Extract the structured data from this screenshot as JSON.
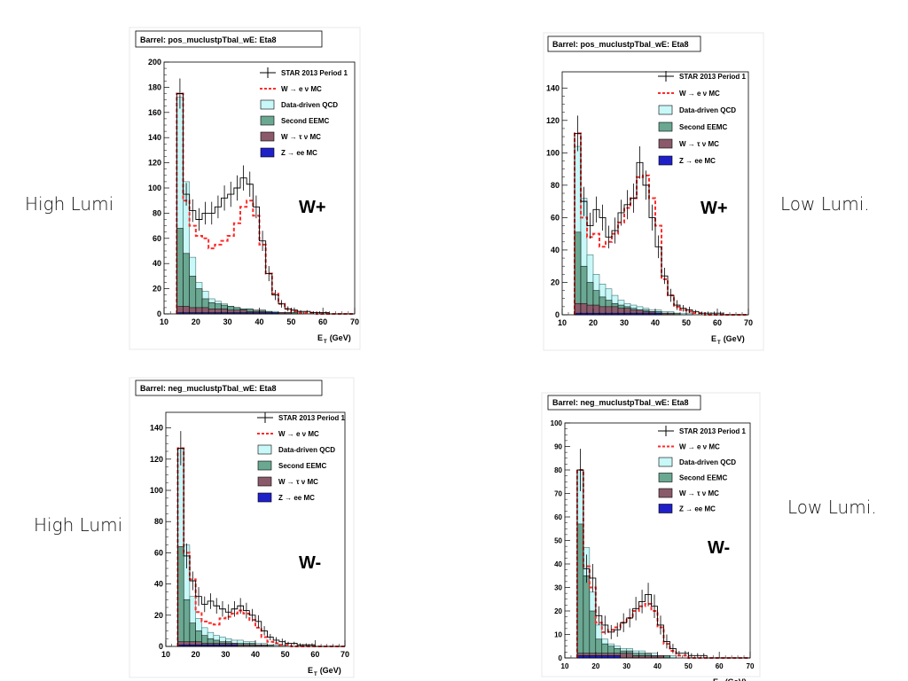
{
  "side_labels": {
    "top_left": "High Lumi",
    "top_right": "Low Lumi.",
    "bottom_left": "High Lumi",
    "bottom_right": "Low Lumi."
  },
  "colors": {
    "data": "#000000",
    "w_enu_mc": "#ff2a2a",
    "qcd": "#c8f8f8",
    "qcd_edge": "#2a5a5a",
    "eemc": "#6aa892",
    "tau": "#8a5a6a",
    "zee": "#2020c8"
  },
  "chart_data": [
    {
      "type": "histogram",
      "title": "Barrel: pos_muclustpTbal_wE: Eta8",
      "charge_label": "W+",
      "xlabel": "E_T (GeV)",
      "xlim": [
        10,
        70
      ],
      "ylim": [
        0,
        200
      ],
      "xticks": [
        10,
        20,
        30,
        40,
        50,
        60,
        70
      ],
      "yticks": [
        0,
        20,
        40,
        60,
        80,
        100,
        120,
        140,
        160,
        180,
        200
      ],
      "bin_edges_start": 14,
      "bin_width": 2,
      "legend": [
        "STAR 2013 Period 1",
        "W → e ν MC",
        "Data-driven QCD",
        "Second EEMC",
        "W → τ ν MC",
        "Z → ee MC"
      ],
      "series": {
        "data": [
          175,
          95,
          82,
          75,
          80,
          80,
          85,
          92,
          95,
          100,
          108,
          103,
          85,
          58,
          32,
          15,
          8,
          4,
          3,
          2,
          2,
          1,
          1,
          1,
          0,
          0,
          0,
          0
        ],
        "data_err": [
          12,
          9,
          9,
          9,
          9,
          9,
          9,
          10,
          10,
          10,
          10,
          10,
          9,
          8,
          6,
          4,
          3,
          2,
          2,
          1,
          1,
          1,
          1,
          1,
          0,
          0,
          0,
          0
        ],
        "w_enu_mc": [
          175,
          90,
          70,
          62,
          60,
          52,
          55,
          58,
          62,
          72,
          85,
          90,
          78,
          55,
          32,
          16,
          8,
          4,
          2,
          1,
          1,
          1,
          0,
          0,
          0,
          0,
          0,
          0
        ],
        "qcd_stack": [
          172,
          105,
          45,
          25,
          18,
          12,
          10,
          8,
          6,
          5,
          4,
          4,
          3,
          3,
          2,
          2,
          1,
          1,
          1,
          1,
          0,
          0,
          0,
          0,
          0,
          0,
          0,
          0
        ],
        "eemc_stack": [
          68,
          48,
          30,
          20,
          12,
          9,
          8,
          7,
          6,
          5,
          4,
          4,
          3,
          3,
          2,
          1,
          1,
          1,
          1,
          0,
          0,
          0,
          0,
          0,
          0,
          0,
          0,
          0
        ],
        "tau_stack": [
          6,
          6,
          5,
          5,
          5,
          4,
          4,
          4,
          3,
          3,
          3,
          2,
          2,
          2,
          1,
          1,
          1,
          1,
          0,
          0,
          0,
          0,
          0,
          0,
          0,
          0,
          0,
          0
        ],
        "zee_stack": [
          1,
          1,
          1,
          1,
          1,
          1,
          1,
          1,
          1,
          1,
          1,
          1,
          1,
          1,
          1,
          1,
          0,
          0,
          0,
          0,
          0,
          0,
          0,
          0,
          0,
          0,
          0,
          0
        ]
      }
    },
    {
      "type": "histogram",
      "title": "Barrel: pos_muclustpTbal_wE: Eta8",
      "charge_label": "W+",
      "xlabel": "E_T (GeV)",
      "xlim": [
        10,
        70
      ],
      "ylim": [
        0,
        150
      ],
      "xticks": [
        10,
        20,
        30,
        40,
        50,
        60,
        70
      ],
      "yticks": [
        0,
        20,
        40,
        60,
        80,
        100,
        120,
        140
      ],
      "bin_edges_start": 14,
      "bin_width": 2,
      "legend": [
        "STAR 2013 Period 1",
        "W → e ν MC",
        "Data-driven QCD",
        "Second EEMC",
        "W → τ ν MC",
        "Z → ee MC"
      ],
      "series": {
        "data": [
          112,
          70,
          55,
          65,
          60,
          48,
          52,
          63,
          68,
          72,
          94,
          80,
          60,
          42,
          24,
          12,
          6,
          4,
          3,
          2,
          1,
          1,
          1,
          1,
          0,
          0,
          0,
          0
        ],
        "data_err": [
          11,
          9,
          8,
          8,
          8,
          7,
          8,
          8,
          9,
          9,
          10,
          9,
          8,
          7,
          5,
          4,
          3,
          2,
          2,
          1,
          1,
          1,
          1,
          1,
          0,
          0,
          0,
          0
        ],
        "w_enu_mc": [
          112,
          60,
          48,
          50,
          42,
          45,
          50,
          57,
          66,
          72,
          85,
          86,
          72,
          55,
          22,
          12,
          5,
          3,
          2,
          1,
          1,
          0,
          0,
          0,
          0,
          0,
          0,
          0
        ],
        "qcd_stack": [
          104,
          72,
          37,
          25,
          19,
          16,
          12,
          9,
          7,
          6,
          5,
          4,
          3,
          3,
          2,
          2,
          1,
          1,
          1,
          0,
          0,
          0,
          0,
          0,
          0,
          0,
          0,
          0
        ],
        "eemc_stack": [
          51,
          30,
          20,
          15,
          11,
          9,
          7,
          6,
          5,
          4,
          3,
          3,
          2,
          2,
          1,
          1,
          1,
          0,
          0,
          0,
          0,
          0,
          0,
          0,
          0,
          0,
          0,
          0
        ],
        "tau_stack": [
          7,
          7,
          6,
          6,
          5,
          5,
          5,
          4,
          4,
          3,
          3,
          2,
          2,
          1,
          1,
          1,
          0,
          0,
          0,
          0,
          0,
          0,
          0,
          0,
          0,
          0,
          0,
          0
        ],
        "zee_stack": [
          1,
          1,
          1,
          1,
          1,
          1,
          1,
          1,
          1,
          1,
          1,
          1,
          1,
          1,
          0,
          0,
          0,
          0,
          0,
          0,
          0,
          0,
          0,
          0,
          0,
          0,
          0,
          0
        ]
      }
    },
    {
      "type": "histogram",
      "title": "Barrel: neg_muclustpTbal_wE: Eta8",
      "charge_label": "W-",
      "xlabel": "E_T (GeV)",
      "xlim": [
        10,
        70
      ],
      "ylim": [
        0,
        150
      ],
      "xticks": [
        10,
        20,
        30,
        40,
        50,
        60,
        70
      ],
      "yticks": [
        0,
        20,
        40,
        60,
        80,
        100,
        120,
        140
      ],
      "bin_edges_start": 14,
      "bin_width": 2,
      "legend": [
        "STAR 2013 Period 1",
        "W → e ν MC",
        "Data-driven QCD",
        "Second EEMC",
        "W → τ ν MC",
        "Z → ee MC"
      ],
      "series": {
        "data": [
          127,
          58,
          42,
          32,
          27,
          29,
          26,
          24,
          22,
          24,
          26,
          23,
          20,
          16,
          10,
          6,
          4,
          3,
          2,
          2,
          1,
          1,
          1,
          0,
          0,
          0,
          0,
          0
        ],
        "data_err": [
          11,
          8,
          6,
          6,
          5,
          5,
          5,
          5,
          5,
          5,
          5,
          5,
          4,
          4,
          3,
          2,
          2,
          2,
          1,
          1,
          1,
          1,
          1,
          0,
          0,
          0,
          0,
          0
        ],
        "w_enu_mc": [
          127,
          60,
          43,
          22,
          16,
          15,
          14,
          18,
          19,
          21,
          23,
          21,
          17,
          12,
          6,
          3,
          2,
          1,
          1,
          0,
          0,
          0,
          0,
          0,
          0,
          0,
          0,
          0
        ],
        "qcd_stack": [
          127,
          65,
          32,
          18,
          12,
          9,
          7,
          6,
          5,
          4,
          4,
          3,
          3,
          2,
          2,
          1,
          1,
          1,
          0,
          0,
          0,
          0,
          0,
          0,
          0,
          0,
          0,
          0
        ],
        "eemc_stack": [
          64,
          30,
          15,
          10,
          7,
          5,
          4,
          3,
          3,
          2,
          2,
          2,
          2,
          1,
          1,
          1,
          0,
          0,
          0,
          0,
          0,
          0,
          0,
          0,
          0,
          0,
          0,
          0
        ],
        "tau_stack": [
          3,
          3,
          3,
          3,
          2,
          2,
          2,
          2,
          2,
          2,
          1,
          1,
          1,
          1,
          1,
          0,
          0,
          0,
          0,
          0,
          0,
          0,
          0,
          0,
          0,
          0,
          0,
          0
        ],
        "zee_stack": [
          1,
          1,
          1,
          1,
          1,
          1,
          1,
          1,
          1,
          1,
          0,
          0,
          0,
          0,
          0,
          0,
          0,
          0,
          0,
          0,
          0,
          0,
          0,
          0,
          0,
          0,
          0,
          0
        ]
      }
    },
    {
      "type": "histogram",
      "title": "Barrel: neg_muclustpTbal_wE: Eta8",
      "charge_label": "W-",
      "xlabel": "E_T (GeV)",
      "xlim": [
        10,
        70
      ],
      "ylim": [
        0,
        100
      ],
      "xticks": [
        10,
        20,
        30,
        40,
        50,
        60,
        70
      ],
      "yticks": [
        0,
        10,
        20,
        30,
        40,
        50,
        60,
        70,
        80,
        90,
        100
      ],
      "bin_edges_start": 14,
      "bin_width": 2,
      "legend": [
        "STAR 2013 Period 1",
        "W → e ν MC",
        "Data-driven QCD",
        "Second EEMC",
        "W → τ ν MC",
        "Z → ee MC"
      ],
      "series": {
        "data": [
          80,
          38,
          34,
          18,
          14,
          11,
          12,
          15,
          17,
          21,
          24,
          27,
          22,
          14,
          7,
          4,
          2,
          2,
          1,
          1,
          1,
          0,
          0,
          0,
          0,
          0,
          0,
          0
        ],
        "data_err": [
          9,
          6,
          6,
          4,
          4,
          3,
          3,
          4,
          4,
          5,
          5,
          5,
          5,
          4,
          3,
          2,
          1,
          1,
          1,
          1,
          1,
          0,
          0,
          0,
          0,
          0,
          0,
          0
        ],
        "w_enu_mc": [
          80,
          39,
          30,
          15,
          11,
          12,
          13,
          15,
          17,
          20,
          22,
          23,
          20,
          13,
          6,
          3,
          1,
          1,
          0,
          0,
          0,
          0,
          0,
          0,
          0,
          0,
          0,
          0
        ],
        "qcd_stack": [
          80,
          47,
          28,
          14,
          8,
          6,
          5,
          4,
          4,
          3,
          3,
          2,
          2,
          1,
          1,
          1,
          0,
          0,
          0,
          0,
          0,
          0,
          0,
          0,
          0,
          0,
          0,
          0
        ],
        "eemc_stack": [
          57,
          35,
          20,
          8,
          6,
          5,
          4,
          3,
          3,
          2,
          2,
          2,
          1,
          1,
          1,
          0,
          0,
          0,
          0,
          0,
          0,
          0,
          0,
          0,
          0,
          0,
          0,
          0
        ],
        "tau_stack": [
          2,
          2,
          2,
          2,
          2,
          2,
          2,
          2,
          2,
          1,
          1,
          1,
          1,
          1,
          0,
          0,
          0,
          0,
          0,
          0,
          0,
          0,
          0,
          0,
          0,
          0,
          0,
          0
        ],
        "zee_stack": [
          1,
          1,
          1,
          1,
          1,
          1,
          1,
          0,
          0,
          0,
          0,
          0,
          0,
          0,
          0,
          0,
          0,
          0,
          0,
          0,
          0,
          0,
          0,
          0,
          0,
          0,
          0,
          0
        ]
      }
    }
  ]
}
